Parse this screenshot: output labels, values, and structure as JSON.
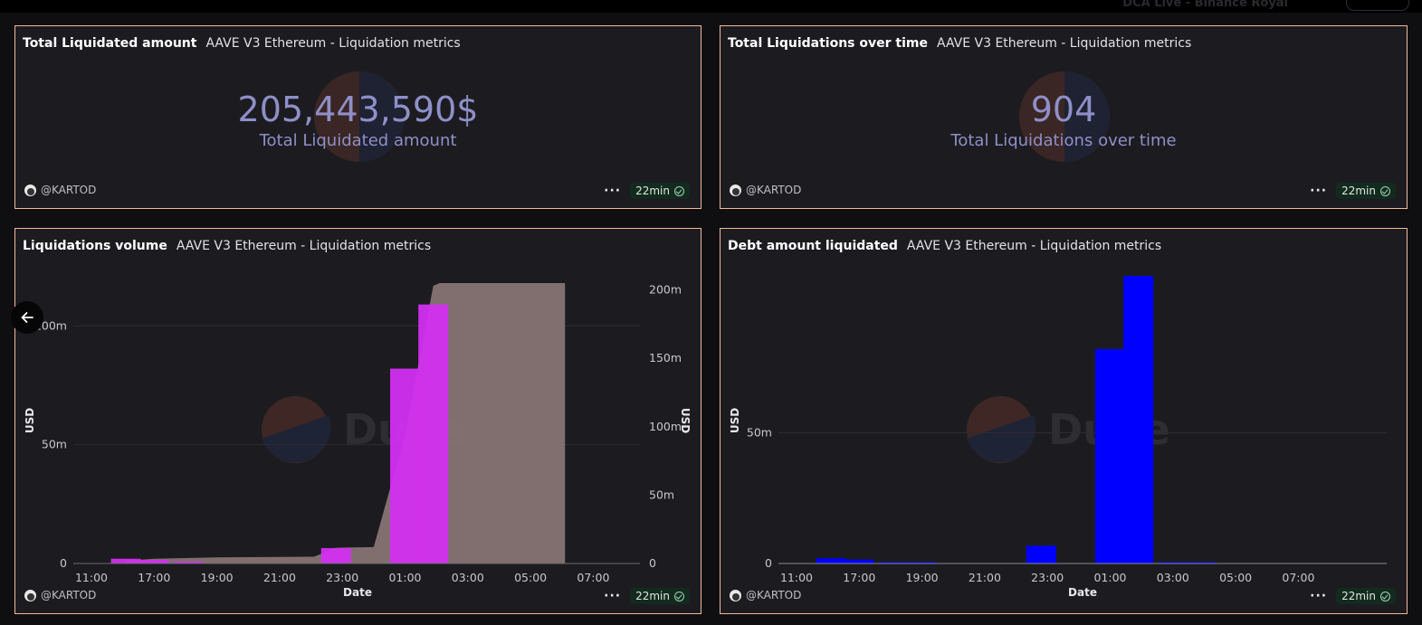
{
  "topbar": {
    "ghost_title": "DCA Live - Binance Royal"
  },
  "panels": {
    "total_amount": {
      "title": "Total Liquidated amount",
      "subtitle": "AAVE V3 Ethereum - Liquidation metrics",
      "value": "205,443,590$",
      "label": "Total Liquidated amount",
      "author": "@KARTOD",
      "refresh": "22min"
    },
    "total_count": {
      "title": "Total Liquidations over time",
      "subtitle": "AAVE V3 Ethereum - Liquidation metrics",
      "value": "904",
      "label": "Total Liquidations over time",
      "author": "@KARTOD",
      "refresh": "22min"
    },
    "volume": {
      "title": "Liquidations volume",
      "subtitle": "AAVE V3 Ethereum - Liquidation metrics",
      "author": "@KARTOD",
      "refresh": "22min",
      "watermark": "Dune"
    },
    "debt": {
      "title": "Debt amount liquidated",
      "subtitle": "AAVE V3 Ethereum - Liquidation metrics",
      "author": "@KARTOD",
      "refresh": "22min",
      "watermark": "Dune"
    }
  },
  "footer_menu_icon": "more-dots-icon",
  "colors": {
    "panel_border": "#f5b79a",
    "counter": "#8f8fc8",
    "bar_magenta": "#d22ff0",
    "bar_pink": "#e07fe0",
    "cumulative_area": "#8a7676",
    "debt_blue": "#0000ff"
  },
  "chart_data": [
    {
      "type": "bar",
      "id": "volume",
      "xlabel": "Date",
      "ylabel": "USD",
      "y2label": "USD",
      "categories": [
        "11:00",
        "17:00",
        "19:00",
        "21:00",
        "23:00",
        "01:00",
        "03:00",
        "05:00",
        "07:00"
      ],
      "ylim": [
        0,
        110000000
      ],
      "y_ticks": [
        0,
        50000000,
        100000000
      ],
      "y_tick_labels": [
        "0",
        "50m",
        "100m"
      ],
      "y2lim": [
        0,
        205000000
      ],
      "y2_ticks": [
        0,
        50000000,
        100000000,
        150000000,
        200000000
      ],
      "y2_tick_labels": [
        "0",
        "50m",
        "100m",
        "150m",
        "200m"
      ],
      "series": [
        {
          "kind": "bar",
          "x": [
            0.55,
            1.0,
            1.55,
            3.9,
            5.0,
            5.45
          ],
          "values": [
            2000000,
            1500000,
            800000,
            6500000,
            82000000,
            109000000
          ]
        },
        {
          "kind": "area",
          "x": [
            0.55,
            1.0,
            2.0,
            3.55,
            3.9,
            4.5,
            5.0,
            5.45,
            5.55,
            7.55
          ],
          "values": [
            2000000,
            3500000,
            4500000,
            5000000,
            11500000,
            12000000,
            94000000,
            203000000,
            205000000,
            205000000
          ]
        }
      ]
    },
    {
      "type": "bar",
      "id": "debt",
      "xlabel": "Date",
      "ylabel": "USD",
      "categories": [
        "11:00",
        "17:00",
        "19:00",
        "21:00",
        "23:00",
        "01:00",
        "03:00",
        "05:00",
        "07:00"
      ],
      "ylim": [
        0,
        110000000
      ],
      "y_ticks": [
        0,
        50000000
      ],
      "y_tick_labels": [
        "0",
        "50m"
      ],
      "x": [
        0.55,
        1.0,
        1.55,
        2.0,
        3.9,
        5.0,
        5.45,
        6.0,
        6.45
      ],
      "values": [
        2000000,
        1500000,
        500000,
        300000,
        6800000,
        82000000,
        110000000,
        200000,
        200000
      ]
    }
  ]
}
